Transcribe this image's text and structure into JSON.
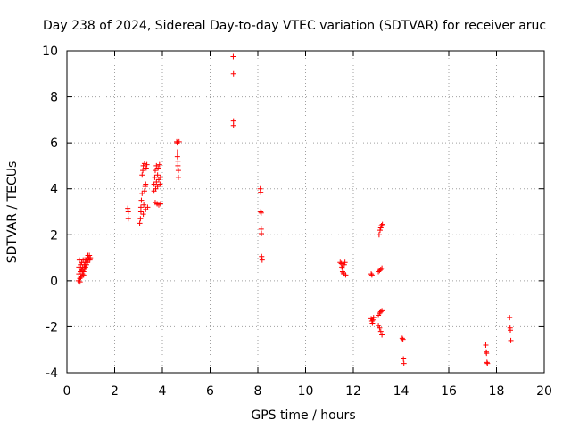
{
  "chart_data": {
    "type": "scatter",
    "title": "Day 238 of 2024, Sidereal Day-to-day VTEC variation (SDTVAR) for receiver aruc",
    "xlabel": "GPS time / hours",
    "ylabel": "SDTVAR / TECUs",
    "xlim": [
      0,
      20
    ],
    "ylim": [
      -4,
      10
    ],
    "xticks": [
      0,
      2,
      4,
      6,
      8,
      10,
      12,
      14,
      16,
      18,
      20
    ],
    "yticks": [
      -4,
      -2,
      0,
      2,
      4,
      6,
      8,
      10
    ],
    "xtick_labels": [
      "0",
      "2",
      "4",
      "6",
      "8",
      "10",
      "12",
      "14",
      "16",
      "18",
      "20"
    ],
    "ytick_labels": [
      "-4",
      "-2",
      "0",
      "2",
      "4",
      "6",
      "8",
      "10"
    ],
    "grid": true,
    "marker": "plus",
    "color": "#ff0000",
    "series": [
      {
        "name": "SDTVAR",
        "points": [
          [
            0.48,
            0.0
          ],
          [
            0.5,
            0.3
          ],
          [
            0.5,
            0.6
          ],
          [
            0.52,
            0.9
          ],
          [
            0.54,
            0.1
          ],
          [
            0.56,
            0.4
          ],
          [
            0.57,
            0.7
          ],
          [
            0.6,
            0.2
          ],
          [
            0.6,
            0.5
          ],
          [
            0.62,
            0.8
          ],
          [
            0.65,
            0.3
          ],
          [
            0.66,
            0.6
          ],
          [
            0.68,
            0.9
          ],
          [
            0.7,
            0.4
          ],
          [
            0.72,
            0.7
          ],
          [
            0.74,
            0.5
          ],
          [
            0.76,
            0.8
          ],
          [
            0.78,
            0.6
          ],
          [
            0.8,
            0.9
          ],
          [
            0.82,
            0.7
          ],
          [
            0.84,
            1.0
          ],
          [
            0.86,
            0.8
          ],
          [
            0.88,
            1.1
          ],
          [
            0.9,
            0.9
          ],
          [
            0.92,
            1.0
          ],
          [
            0.94,
            1.1
          ],
          [
            0.96,
            0.9
          ],
          [
            0.98,
            1.0
          ],
          [
            0.55,
            -0.05
          ],
          [
            0.58,
            0.15
          ],
          [
            0.64,
            0.45
          ],
          [
            0.7,
            0.25
          ],
          [
            0.75,
            0.55
          ],
          [
            2.55,
            3.15
          ],
          [
            2.57,
            3.0
          ],
          [
            2.57,
            2.7
          ],
          [
            3.05,
            2.5
          ],
          [
            3.08,
            2.7
          ],
          [
            3.1,
            3.0
          ],
          [
            3.1,
            3.2
          ],
          [
            3.12,
            3.5
          ],
          [
            3.15,
            3.8
          ],
          [
            3.15,
            4.6
          ],
          [
            3.18,
            4.8
          ],
          [
            3.2,
            5.0
          ],
          [
            3.2,
            2.9
          ],
          [
            3.22,
            3.3
          ],
          [
            3.25,
            3.9
          ],
          [
            3.25,
            5.1
          ],
          [
            3.28,
            4.1
          ],
          [
            3.3,
            4.2
          ],
          [
            3.3,
            3.1
          ],
          [
            3.32,
            4.9
          ],
          [
            3.35,
            5.05
          ],
          [
            3.38,
            3.2
          ],
          [
            3.65,
            3.9
          ],
          [
            3.65,
            4.2
          ],
          [
            3.68,
            4.5
          ],
          [
            3.7,
            4.8
          ],
          [
            3.7,
            3.4
          ],
          [
            3.72,
            4.0
          ],
          [
            3.75,
            4.3
          ],
          [
            3.75,
            5.0
          ],
          [
            3.78,
            3.35
          ],
          [
            3.8,
            4.1
          ],
          [
            3.8,
            4.6
          ],
          [
            3.82,
            4.9
          ],
          [
            3.85,
            3.3
          ],
          [
            3.85,
            4.4
          ],
          [
            3.88,
            5.05
          ],
          [
            3.9,
            4.2
          ],
          [
            3.92,
            3.35
          ],
          [
            3.92,
            4.5
          ],
          [
            4.6,
            6.05
          ],
          [
            4.62,
            6.0
          ],
          [
            4.63,
            5.6
          ],
          [
            4.63,
            5.4
          ],
          [
            4.65,
            5.2
          ],
          [
            4.65,
            5.0
          ],
          [
            4.67,
            4.8
          ],
          [
            4.67,
            4.5
          ],
          [
            4.7,
            6.05
          ],
          [
            6.97,
            9.75
          ],
          [
            6.98,
            9.0
          ],
          [
            6.98,
            6.95
          ],
          [
            6.98,
            6.75
          ],
          [
            8.1,
            4.0
          ],
          [
            8.12,
            3.85
          ],
          [
            8.12,
            3.0
          ],
          [
            8.14,
            2.95
          ],
          [
            8.14,
            2.25
          ],
          [
            8.15,
            2.05
          ],
          [
            8.16,
            1.05
          ],
          [
            8.18,
            0.9
          ],
          [
            11.45,
            0.8
          ],
          [
            11.5,
            0.75
          ],
          [
            11.52,
            0.6
          ],
          [
            11.55,
            0.55
          ],
          [
            11.55,
            0.4
          ],
          [
            11.58,
            0.35
          ],
          [
            11.6,
            0.3
          ],
          [
            11.62,
            0.7
          ],
          [
            11.65,
            0.8
          ],
          [
            11.68,
            0.25
          ],
          [
            12.75,
            0.3
          ],
          [
            12.78,
            0.25
          ],
          [
            12.75,
            -1.65
          ],
          [
            12.78,
            -1.75
          ],
          [
            12.8,
            -1.85
          ],
          [
            12.82,
            -1.7
          ],
          [
            12.85,
            -1.6
          ],
          [
            13.05,
            0.4
          ],
          [
            13.1,
            0.45
          ],
          [
            13.15,
            0.5
          ],
          [
            13.2,
            0.55
          ],
          [
            13.08,
            2.0
          ],
          [
            13.12,
            2.2
          ],
          [
            13.15,
            2.3
          ],
          [
            13.18,
            2.4
          ],
          [
            13.22,
            2.45
          ],
          [
            13.05,
            -1.5
          ],
          [
            13.1,
            -1.4
          ],
          [
            13.15,
            -1.35
          ],
          [
            13.2,
            -1.3
          ],
          [
            13.05,
            -1.95
          ],
          [
            13.1,
            -2.05
          ],
          [
            13.15,
            -2.2
          ],
          [
            13.2,
            -2.35
          ],
          [
            14.05,
            -2.5
          ],
          [
            14.08,
            -2.55
          ],
          [
            14.1,
            -3.4
          ],
          [
            14.12,
            -3.6
          ],
          [
            17.55,
            -2.8
          ],
          [
            17.57,
            -3.1
          ],
          [
            17.58,
            -3.15
          ],
          [
            17.6,
            -3.55
          ],
          [
            17.62,
            -3.6
          ],
          [
            18.55,
            -1.6
          ],
          [
            18.57,
            -2.05
          ],
          [
            18.58,
            -2.15
          ],
          [
            18.6,
            -2.6
          ]
        ]
      }
    ]
  }
}
